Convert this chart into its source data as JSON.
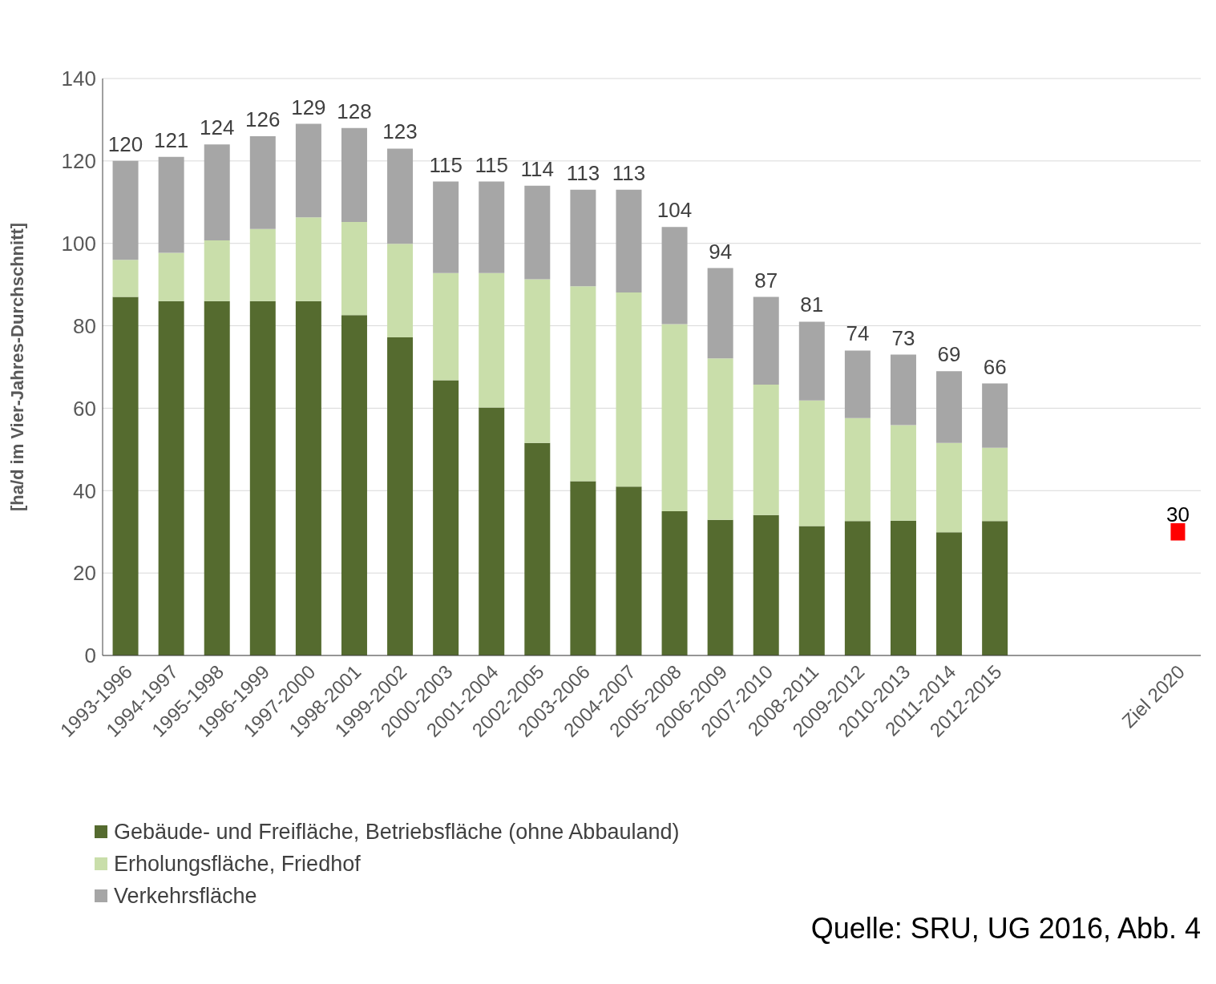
{
  "chart_data": {
    "type": "bar",
    "stacked": true,
    "ylabel": "[ha/d im Vier-Jahres-Durchschnitt]",
    "categories": [
      "1993-1996",
      "1994-1997",
      "1995-1998",
      "1996-1999",
      "1997-2000",
      "1998-2001",
      "1999-2002",
      "2000-2003",
      "2001-2004",
      "2002-2005",
      "2003-2006",
      "2004-2007",
      "2005-2008",
      "2006-2009",
      "2007-2010",
      "2008-2011",
      "2009-2012",
      "2010-2013",
      "2011-2014",
      "2012-2015",
      null,
      null,
      null,
      "Ziel 2020"
    ],
    "series": [
      {
        "name": "Gebäude- und Freifläche, Betriebsfläche (ohne Abbauland)",
        "color": "#556b2f",
        "values": [
          87,
          86,
          86,
          86,
          86,
          82.6,
          77.2,
          66.8,
          60.2,
          51.6,
          42.3,
          41,
          35,
          32.9,
          34.1,
          31.4,
          32.6,
          32.7,
          29.9,
          32.6,
          null,
          null,
          null,
          null
        ]
      },
      {
        "name": "Erholungsfläche, Friedhof",
        "color": "#c9deaa",
        "values": [
          9,
          11.7,
          14.7,
          17.5,
          20.3,
          22.6,
          22.7,
          26,
          32.6,
          39.7,
          47.3,
          47.1,
          45.4,
          39.2,
          31.6,
          30.5,
          25,
          23.2,
          21.7,
          17.8,
          null,
          null,
          null,
          null
        ]
      },
      {
        "name": "Verkehrsfläche",
        "color": "#a6a6a6",
        "values": [
          24,
          23.3,
          23.3,
          22.5,
          22.7,
          22.8,
          23.1,
          22.2,
          22.2,
          22.7,
          23.4,
          24.9,
          23.6,
          21.9,
          21.3,
          19.1,
          16.4,
          17.1,
          17.4,
          15.6,
          null,
          null,
          null,
          null
        ]
      },
      {
        "type": "scatter",
        "color": "#ff0000",
        "marker": "square",
        "values": [
          null,
          null,
          null,
          null,
          null,
          null,
          null,
          null,
          null,
          null,
          null,
          null,
          null,
          null,
          null,
          null,
          null,
          null,
          null,
          null,
          null,
          null,
          null,
          30
        ],
        "value_labels": [
          null,
          null,
          null,
          null,
          null,
          null,
          null,
          null,
          null,
          null,
          null,
          null,
          null,
          null,
          null,
          null,
          null,
          null,
          null,
          null,
          null,
          null,
          null,
          "30"
        ]
      }
    ],
    "totals": [
      "120",
      "121",
      "124",
      "126",
      "129",
      "128",
      "123",
      "115",
      "115",
      "114",
      "113",
      "113",
      "104",
      "94",
      "87",
      "81",
      "74",
      "73",
      "69",
      "66",
      null,
      null,
      null,
      null
    ],
    "ylim": [
      0,
      140
    ],
    "yticks": [
      0,
      20,
      40,
      60,
      80,
      100,
      120,
      140
    ],
    "grid": "y",
    "legend": "bottom left",
    "annotations": [
      "Quelle: SRU, UG 2016, Abb. 4"
    ]
  }
}
